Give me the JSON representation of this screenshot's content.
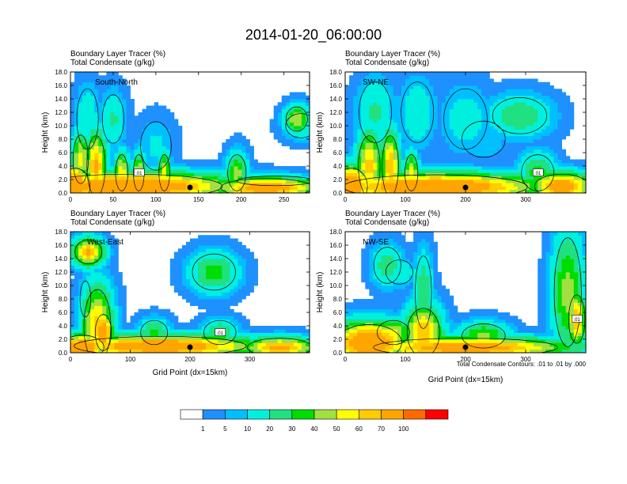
{
  "title": "2014-01-20_06:00:00",
  "colorbar": {
    "colors": [
      "#ffffff",
      "#1e90ff",
      "#00bfff",
      "#00f0e0",
      "#20e080",
      "#00dd00",
      "#a0e040",
      "#ffff00",
      "#ffcc00",
      "#ffa500",
      "#ff6a00",
      "#ff0000"
    ],
    "labels": [
      "1",
      "5",
      "10",
      "20",
      "30",
      "40",
      "50",
      "60",
      "70",
      "100"
    ]
  },
  "footnote": "Total Condensate Contours: .01 to .01 by .000",
  "contour_label": ".01",
  "chart_data": [
    {
      "type": "heatmap",
      "header": [
        "Boundary Layer Tracer    (%)",
        "Total Condensate   (g/kg)"
      ],
      "panel_label": "South-North",
      "ylabel": "Height (km)",
      "xlabel": "",
      "ylim": [
        0,
        18
      ],
      "yticks": [
        "0.0",
        "2.0",
        "4.0",
        "6.0",
        "8.0",
        "10.0",
        "12.0",
        "14.0",
        "16.0",
        "18.0"
      ],
      "xlim": [
        0,
        280
      ],
      "xticks": [
        0,
        50,
        100,
        150,
        200,
        250
      ],
      "marker_x": 140,
      "blobs": [
        {
          "x": 5,
          "y": 1,
          "rx": 20,
          "ry": 3,
          "v": 95
        },
        {
          "x": 70,
          "y": 1,
          "rx": 120,
          "ry": 2,
          "v": 95
        },
        {
          "x": 230,
          "y": 0.8,
          "rx": 60,
          "ry": 1.5,
          "v": 85
        },
        {
          "x": 30,
          "y": 4,
          "rx": 12,
          "ry": 5,
          "v": 72
        },
        {
          "x": 12,
          "y": 5,
          "rx": 10,
          "ry": 4,
          "v": 55
        },
        {
          "x": 60,
          "y": 3,
          "rx": 8,
          "ry": 3,
          "v": 60
        },
        {
          "x": 80,
          "y": 3,
          "rx": 7,
          "ry": 3,
          "v": 55
        },
        {
          "x": 110,
          "y": 3,
          "rx": 7,
          "ry": 3,
          "v": 55
        },
        {
          "x": 195,
          "y": 3,
          "rx": 12,
          "ry": 3,
          "v": 45
        },
        {
          "x": 20,
          "y": 11,
          "rx": 14,
          "ry": 5,
          "v": 18
        },
        {
          "x": 50,
          "y": 11,
          "rx": 14,
          "ry": 4,
          "v": 22
        },
        {
          "x": 100,
          "y": 7,
          "rx": 20,
          "ry": 4,
          "v": 12
        },
        {
          "x": 270,
          "y": 10,
          "rx": 20,
          "ry": 2,
          "v": 22
        },
        {
          "x": 240,
          "y": 1.8,
          "rx": 50,
          "ry": 0.8,
          "v": 30
        },
        {
          "x": 265,
          "y": 11,
          "rx": 14,
          "ry": 2,
          "v": 50
        }
      ]
    },
    {
      "type": "heatmap",
      "header": [
        "Boundary Layer Tracer    (%)",
        "Total Condensate   (g/kg)"
      ],
      "panel_label": "SW-NE",
      "ylabel": "Height (km)",
      "xlabel": "",
      "ylim": [
        0,
        18
      ],
      "yticks": [
        "0.0",
        "2.0",
        "4.0",
        "6.0",
        "8.0",
        "10.0",
        "12.0",
        "14.0",
        "16.0",
        "18.0"
      ],
      "xlim": [
        0,
        400
      ],
      "xticks": [
        0,
        100,
        200,
        300
      ],
      "marker_x": 200,
      "blobs": [
        {
          "x": 10,
          "y": 1,
          "rx": 30,
          "ry": 3,
          "v": 95
        },
        {
          "x": 150,
          "y": 0.9,
          "rx": 170,
          "ry": 2,
          "v": 95
        },
        {
          "x": 360,
          "y": 1,
          "rx": 50,
          "ry": 2,
          "v": 85
        },
        {
          "x": 40,
          "y": 4,
          "rx": 20,
          "ry": 5,
          "v": 65
        },
        {
          "x": 75,
          "y": 4,
          "rx": 15,
          "ry": 5,
          "v": 70
        },
        {
          "x": 110,
          "y": 3,
          "rx": 12,
          "ry": 3,
          "v": 55
        },
        {
          "x": 320,
          "y": 3,
          "rx": 30,
          "ry": 3,
          "v": 35
        },
        {
          "x": 50,
          "y": 12,
          "rx": 30,
          "ry": 5,
          "v": 22
        },
        {
          "x": 120,
          "y": 12,
          "rx": 30,
          "ry": 5,
          "v": 18
        },
        {
          "x": 200,
          "y": 11,
          "rx": 40,
          "ry": 5,
          "v": 15
        },
        {
          "x": 290,
          "y": 11.5,
          "rx": 50,
          "ry": 3,
          "v": 30
        },
        {
          "x": 230,
          "y": 8,
          "rx": 40,
          "ry": 3,
          "v": 10
        }
      ]
    },
    {
      "type": "heatmap",
      "header": [
        "Boundary Layer Tracer    (%)",
        "Total Condensate   (g/kg)"
      ],
      "panel_label": "West-East",
      "ylabel": "Height (km)",
      "xlabel": "Grid Point (dx=15km)",
      "ylim": [
        0,
        18
      ],
      "yticks": [
        "0.0",
        "2.0",
        "4.0",
        "6.0",
        "8.0",
        "10.0",
        "12.0",
        "14.0",
        "16.0",
        "18.0"
      ],
      "xlim": [
        0,
        400
      ],
      "xticks": [
        0,
        100,
        200,
        300
      ],
      "marker_x": 200,
      "blobs": [
        {
          "x": 20,
          "y": 0.8,
          "rx": 40,
          "ry": 2,
          "v": 90
        },
        {
          "x": 150,
          "y": 1,
          "rx": 160,
          "ry": 1.6,
          "v": 90
        },
        {
          "x": 350,
          "y": 0.8,
          "rx": 60,
          "ry": 1.5,
          "v": 75
        },
        {
          "x": 45,
          "y": 4,
          "rx": 25,
          "ry": 6,
          "v": 65
        },
        {
          "x": 55,
          "y": 3,
          "rx": 15,
          "ry": 3,
          "v": 88
        },
        {
          "x": 140,
          "y": 3,
          "rx": 25,
          "ry": 2,
          "v": 35
        },
        {
          "x": 250,
          "y": 3,
          "rx": 30,
          "ry": 2,
          "v": 30
        },
        {
          "x": 30,
          "y": 15,
          "rx": 25,
          "ry": 2,
          "v": 72
        },
        {
          "x": 240,
          "y": 12,
          "rx": 40,
          "ry": 3,
          "v": 35
        },
        {
          "x": 25,
          "y": 8,
          "rx": 10,
          "ry": 3,
          "v": 15
        }
      ]
    },
    {
      "type": "heatmap",
      "header": [
        "Boundary Layer Tracer    (%)",
        "Total Condensate   (g/kg)"
      ],
      "panel_label": "NW-SE",
      "ylabel": "Height (km)",
      "xlabel": "Grid Point (dx=15km)",
      "ylim": [
        0,
        18
      ],
      "yticks": [
        "0.0",
        "2.0",
        "4.0",
        "6.0",
        "8.0",
        "10.0",
        "12.0",
        "14.0",
        "16.0",
        "18.0"
      ],
      "xlim": [
        0,
        400
      ],
      "xticks": [
        0,
        100,
        200,
        300
      ],
      "marker_x": 200,
      "blobs": [
        {
          "x": 40,
          "y": 1.5,
          "rx": 60,
          "ry": 3,
          "v": 95
        },
        {
          "x": 200,
          "y": 0.8,
          "rx": 170,
          "ry": 1.5,
          "v": 85
        },
        {
          "x": 130,
          "y": 3,
          "rx": 30,
          "ry": 4,
          "v": 70
        },
        {
          "x": 80,
          "y": 3,
          "rx": 30,
          "ry": 2,
          "v": 55
        },
        {
          "x": 230,
          "y": 2.5,
          "rx": 40,
          "ry": 2,
          "v": 45
        },
        {
          "x": 370,
          "y": 9,
          "rx": 25,
          "ry": 9,
          "v": 45
        },
        {
          "x": 385,
          "y": 5,
          "rx": 15,
          "ry": 4,
          "v": 70
        },
        {
          "x": 130,
          "y": 9,
          "rx": 15,
          "ry": 6,
          "v": 30
        },
        {
          "x": 70,
          "y": 13,
          "rx": 25,
          "ry": 3,
          "v": 28
        },
        {
          "x": 90,
          "y": 12,
          "rx": 25,
          "ry": 2,
          "v": 20
        }
      ]
    }
  ]
}
